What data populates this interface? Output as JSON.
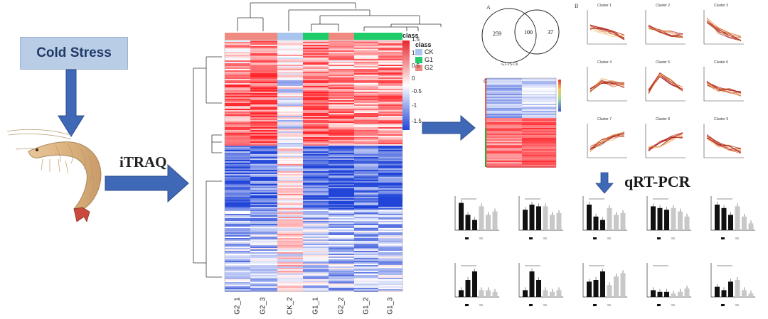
{
  "left": {
    "cold_stress_label": "Cold Stress",
    "itraq_label": "iTRAQ"
  },
  "heatmap": {
    "columns": [
      "G2_1",
      "G2_3",
      "CK_2",
      "G1_1",
      "G2_2",
      "G1_2",
      "G1_3"
    ],
    "column_classes": [
      "G2",
      "G2",
      "CK",
      "G1",
      "G2",
      "G1",
      "G1"
    ],
    "colorbar_title": "class",
    "colorbar_ticks": [
      "1.5",
      "1",
      "0.5",
      "0",
      "-0.5",
      "-1",
      "-1.5"
    ],
    "legend_title": "class",
    "legend_items": [
      {
        "label": "CK",
        "color": "#a9c4ef"
      },
      {
        "label": "G1",
        "color": "#1ecc6a"
      },
      {
        "label": "G2",
        "color": "#ef8a80"
      }
    ]
  },
  "panel_a": {
    "letter": "A",
    "venn_left": "259",
    "venn_middle": "100",
    "venn_right": "37"
  },
  "panel_b": {
    "letter": "B",
    "clusters": [
      "Cluster 1",
      "Cluster 2",
      "Cluster 3",
      "Cluster 4",
      "Cluster 5",
      "Cluster 6",
      "Cluster 7",
      "Cluster 8",
      "Cluster 9"
    ]
  },
  "panel_c": {
    "letter": "C"
  },
  "qrt_pcr_label": "qRT-PCR",
  "colors": {
    "arrow_fill": "#3f68b6",
    "arrow_stroke": "#2c4c8c",
    "cold_box": "#b9cde6",
    "heat_red": "#e8252b",
    "heat_blue": "#2145d8",
    "g1": "#1ecc6a",
    "g2": "#ef8a80",
    "ck": "#a9c4ef"
  }
}
